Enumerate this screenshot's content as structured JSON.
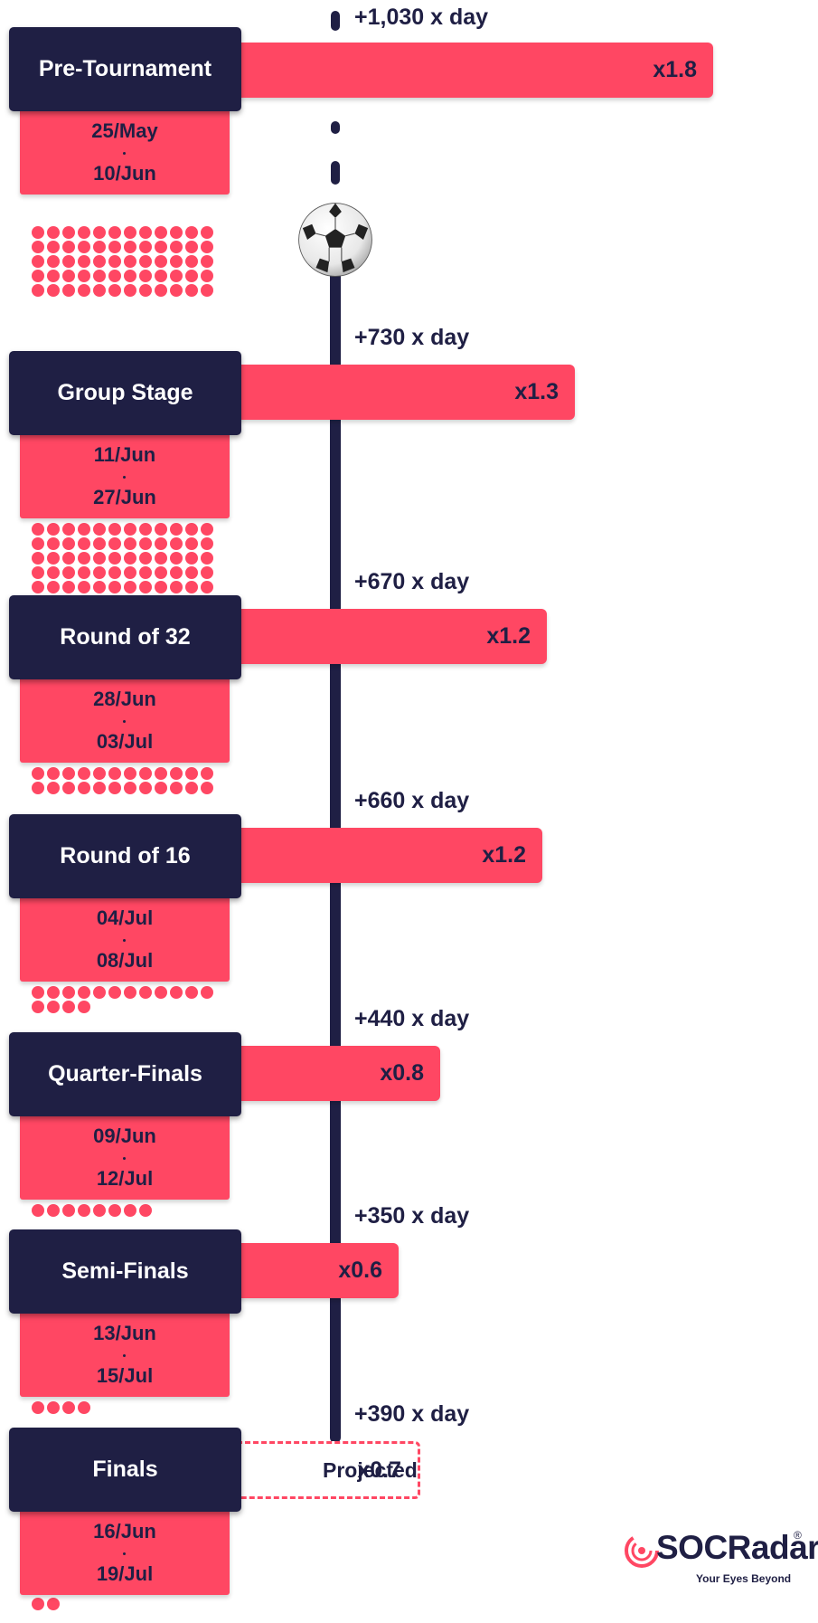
{
  "chart_data": {
    "type": "bar",
    "categories": [
      "Pre-Tournament",
      "Group Stage",
      "Round of 32",
      "Round of 16",
      "Quarter-Finals",
      "Semi-Finals",
      "Finals"
    ],
    "series": [
      {
        "values": [
          1030,
          730,
          670,
          660,
          440,
          350,
          390
        ]
      }
    ],
    "bar_labels": [
      "+1,030 x day",
      "+730 x day",
      "+670 x day",
      "+660 x day",
      "+440 x day",
      "+350 x day",
      "+390 x day"
    ],
    "multipliers": [
      "x1.8",
      "x1.3",
      "x1.2",
      "x1.2",
      "x0.8",
      "x0.6",
      "x0.7"
    ],
    "date_ranges": [
      [
        "25/May",
        "10/Jun"
      ],
      [
        "11/Jun",
        "27/Jun"
      ],
      [
        "28/Jun",
        "03/Jul"
      ],
      [
        "04/Jul",
        "08/Jul"
      ],
      [
        "09/Jun",
        "12/Jul"
      ],
      [
        "13/Jun",
        "15/Jul"
      ],
      [
        "16/Jun",
        "19/Jul"
      ]
    ],
    "dot_counts": [
      60,
      60,
      24,
      16,
      8,
      4,
      2
    ],
    "projected_label": "Projected",
    "projected_index": 6,
    "colors": {
      "bar": "#ff4763",
      "stage": "#1f1f44",
      "timeline": "#1f1f44"
    }
  },
  "branding": {
    "logo_text": "SOCRadar",
    "logo_registered": "®",
    "tagline": "Your Eyes Beyond"
  },
  "icons": {
    "ball": "soccer-ball-icon",
    "logo": "socradar-signal-icon"
  }
}
